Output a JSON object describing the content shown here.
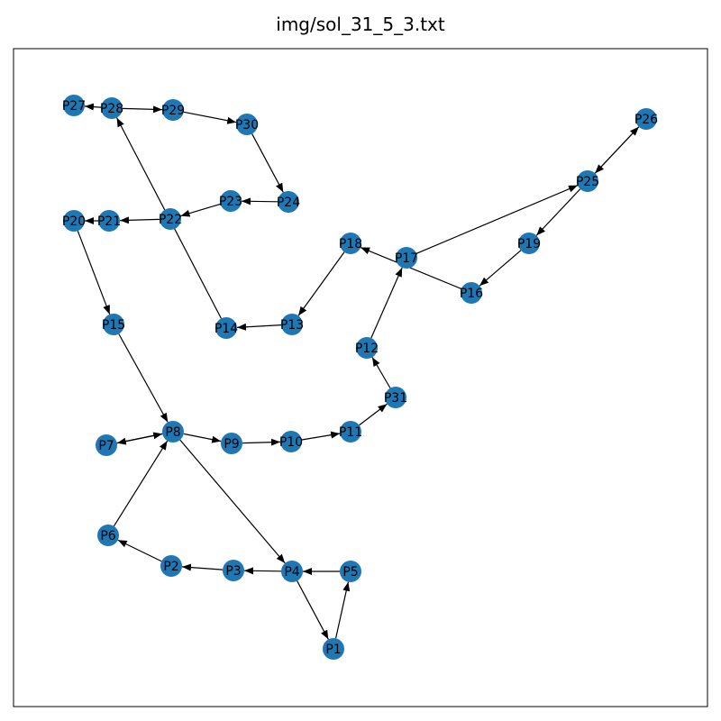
{
  "title": "img/sol_31_5_3.txt",
  "node_color": "#1f77b4",
  "edge_color": "#000000",
  "nodes": [
    {
      "id": "P1"
    },
    {
      "id": "P2"
    },
    {
      "id": "P3"
    },
    {
      "id": "P4"
    },
    {
      "id": "P5"
    },
    {
      "id": "P6"
    },
    {
      "id": "P7"
    },
    {
      "id": "P8"
    },
    {
      "id": "P9"
    },
    {
      "id": "P10"
    },
    {
      "id": "P11"
    },
    {
      "id": "P12"
    },
    {
      "id": "P13"
    },
    {
      "id": "P14"
    },
    {
      "id": "P15"
    },
    {
      "id": "P16"
    },
    {
      "id": "P17"
    },
    {
      "id": "P18"
    },
    {
      "id": "P19"
    },
    {
      "id": "P20"
    },
    {
      "id": "P21"
    },
    {
      "id": "P22"
    },
    {
      "id": "P23"
    },
    {
      "id": "P24"
    },
    {
      "id": "P25"
    },
    {
      "id": "P26"
    },
    {
      "id": "P27"
    },
    {
      "id": "P28"
    },
    {
      "id": "P29"
    },
    {
      "id": "P30"
    },
    {
      "id": "P31"
    }
  ],
  "edges": [
    [
      "P1",
      "P5"
    ],
    [
      "P5",
      "P4"
    ],
    [
      "P4",
      "P1"
    ],
    [
      "P4",
      "P3"
    ],
    [
      "P3",
      "P2"
    ],
    [
      "P2",
      "P6"
    ],
    [
      "P6",
      "P8"
    ],
    [
      "P8",
      "P4"
    ],
    [
      "P8",
      "P7"
    ],
    [
      "P7",
      "P8"
    ],
    [
      "P15",
      "P8"
    ],
    [
      "P8",
      "P9"
    ],
    [
      "P9",
      "P10"
    ],
    [
      "P10",
      "P11"
    ],
    [
      "P11",
      "P31"
    ],
    [
      "P31",
      "P12"
    ],
    [
      "P12",
      "P17"
    ],
    [
      "P16",
      "P18"
    ],
    [
      "P17",
      "P25"
    ],
    [
      "P25",
      "P26"
    ],
    [
      "P26",
      "P25"
    ],
    [
      "P25",
      "P19"
    ],
    [
      "P19",
      "P16"
    ],
    [
      "P18",
      "P13"
    ],
    [
      "P13",
      "P14"
    ],
    [
      "P14",
      "P28"
    ],
    [
      "P28",
      "P27"
    ],
    [
      "P28",
      "P29"
    ],
    [
      "P29",
      "P30"
    ],
    [
      "P30",
      "P24"
    ],
    [
      "P24",
      "P23"
    ],
    [
      "P23",
      "P22"
    ],
    [
      "P22",
      "P21"
    ],
    [
      "P21",
      "P20"
    ],
    [
      "P20",
      "P15"
    ]
  ]
}
